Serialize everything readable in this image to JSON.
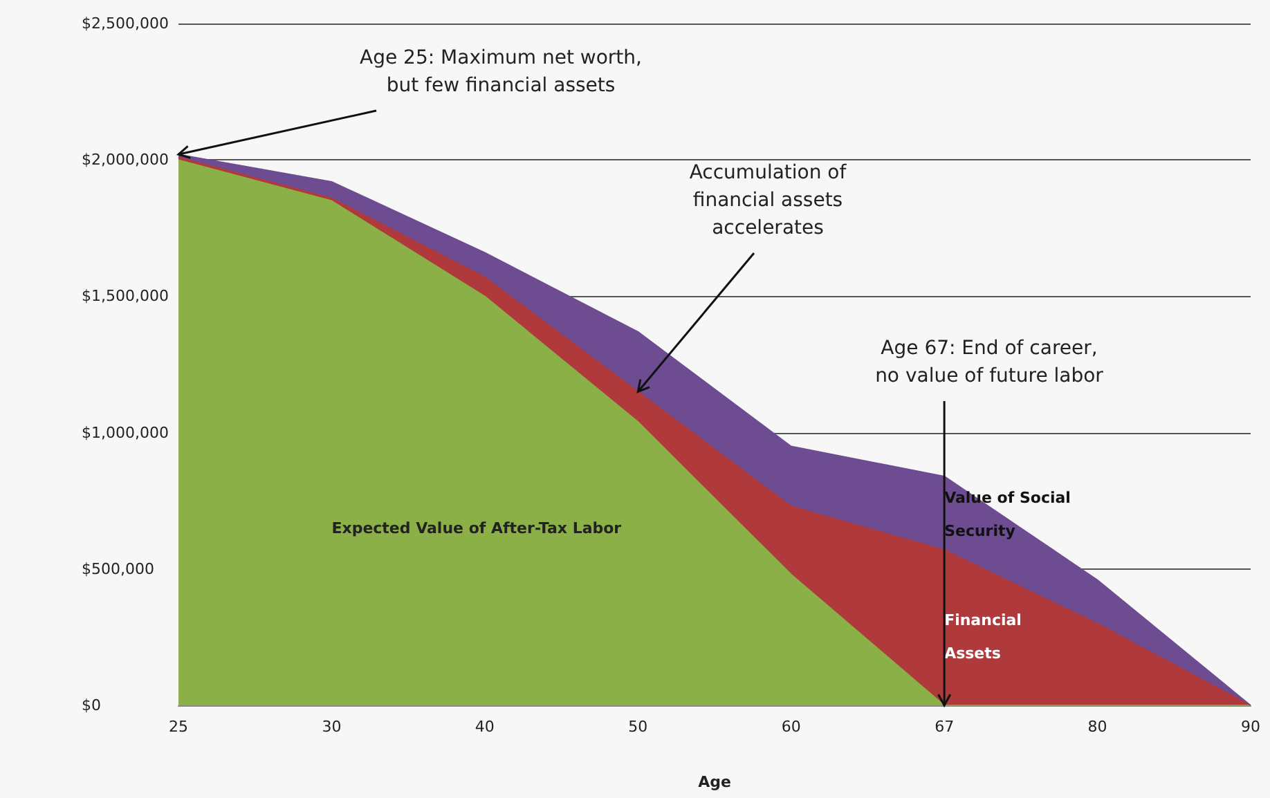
{
  "chart_data": {
    "type": "area",
    "stacked": true,
    "xlabel": "Age",
    "categories": [
      "25",
      "30",
      "40",
      "50",
      "60",
      "67",
      "80",
      "90"
    ],
    "series": [
      {
        "name": "Expected Value of After-Tax Labor",
        "color": "#8bb047",
        "values": [
          2000000,
          1850000,
          1500000,
          1040000,
          480000,
          0,
          0,
          0
        ]
      },
      {
        "name": "Financial Assets",
        "color": "#b0393b",
        "values": [
          10000,
          10000,
          70000,
          110000,
          250000,
          570000,
          300000,
          0
        ]
      },
      {
        "name": "Value of Social Security",
        "color": "#6d4c91",
        "values": [
          10000,
          60000,
          90000,
          220000,
          220000,
          270000,
          160000,
          0
        ]
      }
    ],
    "ylim": [
      0,
      2500000
    ],
    "yticks": [
      {
        "value": 0,
        "label": "$0"
      },
      {
        "value": 500000,
        "label": "$500,000"
      },
      {
        "value": 1000000,
        "label": "$1,000,000"
      },
      {
        "value": 1500000,
        "label": "$1,500,000"
      },
      {
        "value": 2000000,
        "label": "$2,000,000"
      },
      {
        "value": 2500000,
        "label": "$2,500,000"
      }
    ],
    "grid": "y",
    "legend": false,
    "annotations": [
      {
        "text": "Age 25: Maximum net worth,\nbut few financial assets",
        "x": "25",
        "y": 2020000
      },
      {
        "text": "Accumulation of\nfinancial assets\naccelerates",
        "x": "50",
        "y": 1150000
      },
      {
        "text": "Age 67: End of career,\nno value of future labor",
        "x": "67",
        "y": 0
      }
    ]
  }
}
